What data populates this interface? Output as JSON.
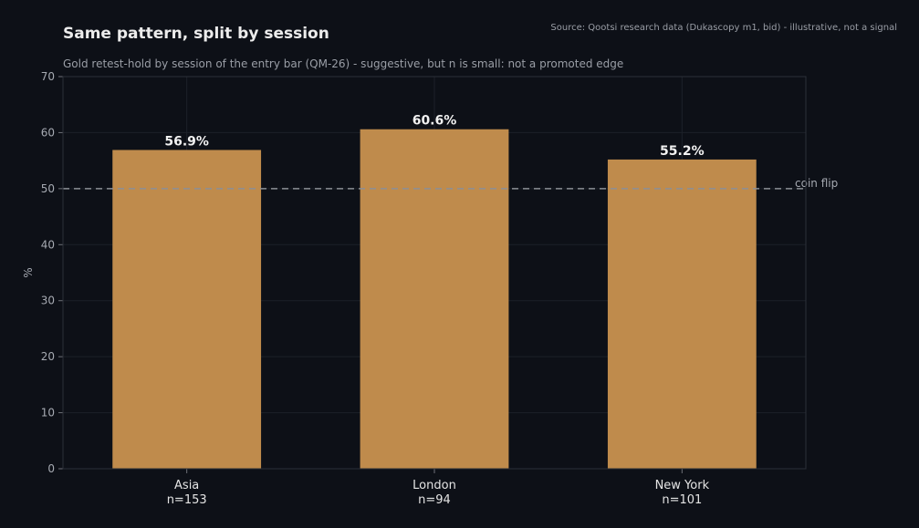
{
  "chart_data": {
    "type": "bar",
    "title": "Same pattern, split by session",
    "subtitle": "Gold retest-hold by session of the entry bar (QM-26) - suggestive, but n is small: not a promoted edge",
    "source": "Source: Qootsi research data (Dukascopy m1, bid) - illustrative, not a signal",
    "xlabel": "",
    "ylabel": "%",
    "categories": [
      "Asia",
      "London",
      "New York"
    ],
    "sample_sizes": [
      "n=153",
      "n=94",
      "n=101"
    ],
    "values": [
      56.9,
      60.6,
      55.2
    ],
    "data_labels": [
      "56.9%",
      "60.6%",
      "55.2%"
    ],
    "ylim": [
      0,
      70
    ],
    "yticks": [
      0,
      10,
      20,
      30,
      40,
      50,
      60,
      70
    ],
    "reference_line": {
      "value": 50,
      "label": "coin flip",
      "style": "dashed"
    },
    "grid": true,
    "legend": "none",
    "colors": {
      "bar": "#bf8b4c",
      "background": "#0d1017",
      "grid": "#1d2129",
      "reference": "#8c8f95"
    }
  }
}
